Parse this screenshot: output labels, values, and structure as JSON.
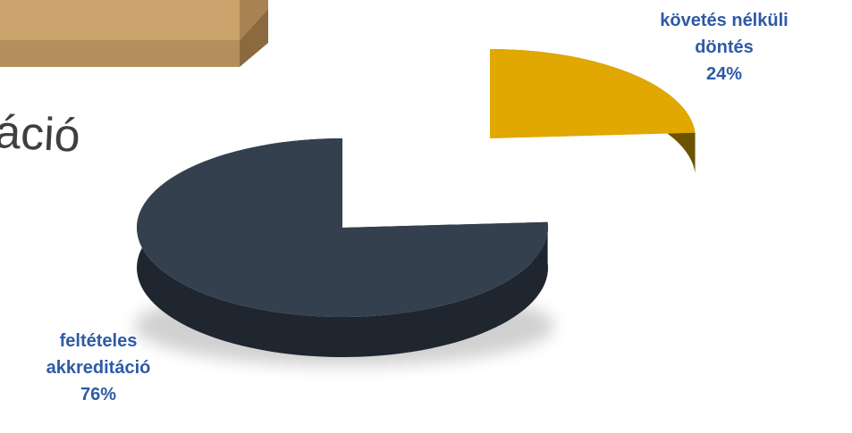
{
  "background": {
    "partial_text": "áció"
  },
  "chart_data": {
    "type": "pie",
    "categories": [
      "követés nélküli döntés",
      "feltételes akkreditáció"
    ],
    "values": [
      24,
      76
    ],
    "value_labels": [
      "24%",
      "76%"
    ],
    "slices": [
      {
        "label_lines": [
          "követés nélküli",
          "döntés"
        ],
        "percent_label": "24%",
        "value": 24,
        "color": "#e0a800",
        "side_color": "#6b5300",
        "exploded": true
      },
      {
        "label_lines": [
          "feltételes",
          "akkreditáció"
        ],
        "percent_label": "76%",
        "value": 76,
        "color": "#35404f",
        "side_color": "#1f2630",
        "exploded": false
      }
    ],
    "style": "3d-exploded",
    "label_color": "#2e5aa6"
  }
}
